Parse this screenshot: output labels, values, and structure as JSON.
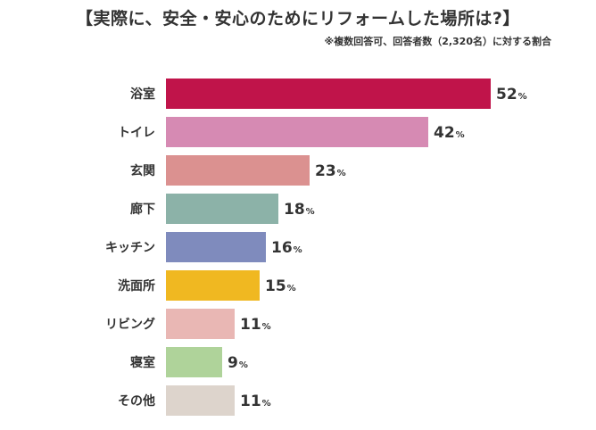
{
  "title": "【実際に、安全・安心のためにリフォームした場所は?】",
  "note": "※複数回答可、回答者数（2,320名）に対する割合",
  "chart_data": {
    "type": "bar",
    "orientation": "horizontal",
    "title": "【実際に、安全・安心のためにリフォームした場所は?】",
    "categories": [
      "浴室",
      "トイレ",
      "玄関",
      "廊下",
      "キッチン",
      "洗面所",
      "リビング",
      "寝室",
      "その他"
    ],
    "values": [
      52,
      42,
      23,
      18,
      16,
      15,
      11,
      9,
      11
    ],
    "unit": "%",
    "colors": [
      "#c0144a",
      "#d68ab3",
      "#db9190",
      "#8cb2a8",
      "#7f8bbd",
      "#f0b821",
      "#e9b7b4",
      "#afd39a",
      "#ddd4cc"
    ],
    "xlim": [
      0,
      52
    ],
    "grid": false,
    "legend": "none"
  }
}
